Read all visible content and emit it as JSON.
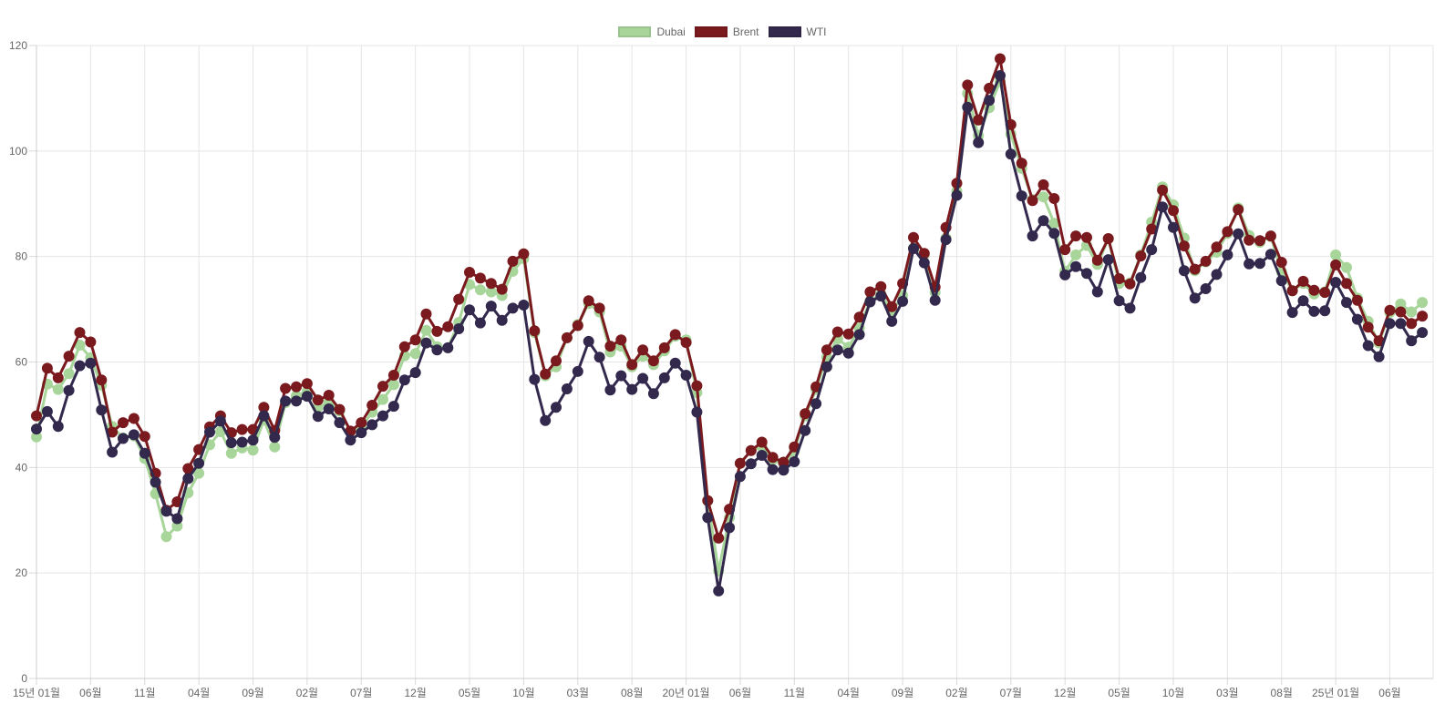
{
  "chart_data": {
    "type": "line",
    "title": "",
    "xlabel": "",
    "ylabel": "",
    "ylim": [
      0,
      120
    ],
    "yticks": [
      0,
      20,
      40,
      60,
      80,
      100,
      120
    ],
    "grid": true,
    "legend_position": "top-center",
    "xtick_labels": [
      {
        "i": 0,
        "label": "15년 01월"
      },
      {
        "i": 5,
        "label": "06월"
      },
      {
        "i": 10,
        "label": "11월"
      },
      {
        "i": 15,
        "label": "04월"
      },
      {
        "i": 20,
        "label": "09월"
      },
      {
        "i": 25,
        "label": "02월"
      },
      {
        "i": 30,
        "label": "07월"
      },
      {
        "i": 35,
        "label": "12월"
      },
      {
        "i": 40,
        "label": "05월"
      },
      {
        "i": 45,
        "label": "10월"
      },
      {
        "i": 50,
        "label": "03월"
      },
      {
        "i": 55,
        "label": "08월"
      },
      {
        "i": 60,
        "label": "20년 01월"
      },
      {
        "i": 65,
        "label": "06월"
      },
      {
        "i": 70,
        "label": "11월"
      },
      {
        "i": 75,
        "label": "04월"
      },
      {
        "i": 80,
        "label": "09월"
      },
      {
        "i": 85,
        "label": "02월"
      },
      {
        "i": 90,
        "label": "07월"
      },
      {
        "i": 95,
        "label": "12월"
      },
      {
        "i": 100,
        "label": "05월"
      },
      {
        "i": 105,
        "label": "10월"
      },
      {
        "i": 110,
        "label": "03월"
      },
      {
        "i": 115,
        "label": "08월"
      },
      {
        "i": 120,
        "label": "25년 01월"
      },
      {
        "i": 125,
        "label": "06월"
      }
    ],
    "series": [
      {
        "name": "Dubai",
        "color": "#a8d59a",
        "values": [
          45.8,
          55.8,
          54.8,
          57.8,
          63.2,
          60.8,
          55.6,
          47.8,
          45.6,
          46.0,
          41.7,
          35.0,
          26.9,
          28.9,
          35.2,
          38.9,
          44.3,
          46.8,
          42.7,
          43.7,
          43.3,
          49.0,
          43.9,
          52.3,
          53.6,
          54.4,
          51.4,
          52.4,
          50.7,
          46.8,
          47.6,
          50.5,
          52.9,
          55.7,
          61.2,
          61.6,
          66.0,
          62.9,
          62.7,
          67.5,
          74.7,
          73.7,
          73.3,
          72.6,
          77.2,
          79.6,
          65.6,
          57.4,
          59.1,
          64.6,
          67.1,
          71.1,
          69.5,
          61.9,
          63.0,
          59.1,
          61.1,
          59.5,
          62.1,
          64.9,
          64.2,
          54.2,
          33.7,
          20.4,
          30.5,
          40.8,
          43.2,
          44.0,
          41.5,
          40.7,
          43.1,
          49.8,
          54.8,
          60.9,
          64.4,
          62.8,
          66.4,
          71.6,
          72.9,
          69.5,
          72.6,
          81.6,
          80.3,
          73.2,
          83.5,
          92.4,
          110.9,
          102.9,
          108.2,
          113.2,
          103.2,
          96.7,
          90.8,
          91.3,
          86.3,
          77.2,
          80.3,
          82.1,
          78.5,
          83.4,
          74.9,
          75.0,
          80.3,
          86.5,
          93.2,
          89.8,
          83.5,
          77.3,
          79.0,
          80.8,
          84.4,
          89.2,
          84.0,
          82.7,
          83.8,
          77.1,
          73.5,
          74.9,
          72.9,
          73.3,
          80.3,
          77.9,
          72.1,
          67.7,
          63.6,
          69.4,
          71.0,
          69.5,
          71.3
        ]
      },
      {
        "name": "Brent",
        "color": "#7a1a1e",
        "values": [
          49.8,
          58.8,
          57.0,
          61.1,
          65.6,
          63.8,
          56.6,
          46.7,
          48.5,
          49.3,
          45.9,
          38.9,
          31.9,
          33.5,
          39.8,
          43.4,
          47.7,
          49.8,
          46.6,
          47.2,
          47.2,
          51.4,
          47.0,
          55.0,
          55.3,
          55.9,
          52.8,
          53.7,
          51.0,
          46.9,
          48.5,
          51.8,
          55.4,
          57.5,
          62.9,
          64.2,
          69.1,
          65.8,
          66.7,
          71.9,
          77.0,
          75.9,
          74.9,
          73.8,
          79.1,
          80.5,
          65.9,
          57.7,
          60.2,
          64.6,
          66.9,
          71.6,
          70.2,
          63.0,
          64.2,
          59.5,
          62.3,
          60.2,
          62.7,
          65.2,
          63.7,
          55.5,
          33.7,
          26.6,
          32.1,
          40.8,
          43.2,
          44.8,
          41.9,
          41.0,
          43.9,
          50.2,
          55.3,
          62.3,
          65.7,
          65.3,
          68.5,
          73.3,
          74.3,
          70.5,
          74.9,
          83.6,
          80.6,
          74.2,
          85.5,
          93.9,
          112.5,
          105.9,
          111.9,
          117.5,
          105.0,
          97.7,
          90.6,
          93.6,
          91.0,
          81.3,
          83.9,
          83.6,
          79.3,
          83.4,
          75.8,
          74.8,
          80.1,
          85.2,
          92.6,
          88.7,
          82.0,
          77.6,
          79.1,
          81.8,
          84.7,
          88.9,
          83.1,
          83.0,
          83.9,
          78.9,
          73.5,
          75.3,
          73.6,
          73.2,
          78.4,
          74.9,
          71.7,
          66.6,
          64.0,
          69.8,
          69.5,
          67.3,
          68.7
        ]
      },
      {
        "name": "WTI",
        "color": "#32294d",
        "values": [
          47.3,
          50.6,
          47.8,
          54.6,
          59.3,
          59.8,
          50.9,
          42.9,
          45.5,
          46.2,
          42.7,
          37.2,
          31.7,
          30.3,
          37.9,
          40.8,
          46.7,
          48.8,
          44.7,
          44.8,
          45.2,
          49.8,
          45.7,
          52.6,
          52.6,
          53.5,
          49.7,
          51.1,
          48.5,
          45.2,
          46.6,
          48.1,
          49.8,
          51.6,
          56.6,
          58.0,
          63.6,
          62.3,
          62.7,
          66.3,
          69.9,
          67.4,
          70.6,
          67.9,
          70.2,
          70.8,
          56.7,
          48.9,
          51.4,
          54.9,
          58.2,
          63.9,
          60.9,
          54.7,
          57.4,
          54.8,
          56.9,
          54.0,
          57.0,
          59.8,
          57.5,
          50.5,
          30.5,
          16.6,
          28.6,
          38.3,
          40.7,
          42.3,
          39.6,
          39.5,
          41.1,
          47.0,
          52.1,
          59.1,
          62.3,
          61.7,
          65.2,
          71.4,
          72.5,
          67.7,
          71.5,
          81.5,
          78.8,
          71.7,
          83.2,
          91.6,
          108.3,
          101.6,
          109.6,
          114.3,
          99.4,
          91.5,
          83.9,
          86.8,
          84.4,
          76.5,
          78.1,
          76.8,
          73.3,
          79.4,
          71.6,
          70.2,
          76.0,
          81.3,
          89.4,
          85.5,
          77.3,
          72.1,
          73.9,
          76.6,
          80.3,
          84.3,
          78.6,
          78.7,
          80.4,
          75.4,
          69.4,
          71.6,
          69.6,
          69.7,
          75.1,
          71.3,
          68.1,
          63.1,
          61.0,
          67.3,
          67.3,
          64.0,
          65.6
        ]
      }
    ]
  }
}
